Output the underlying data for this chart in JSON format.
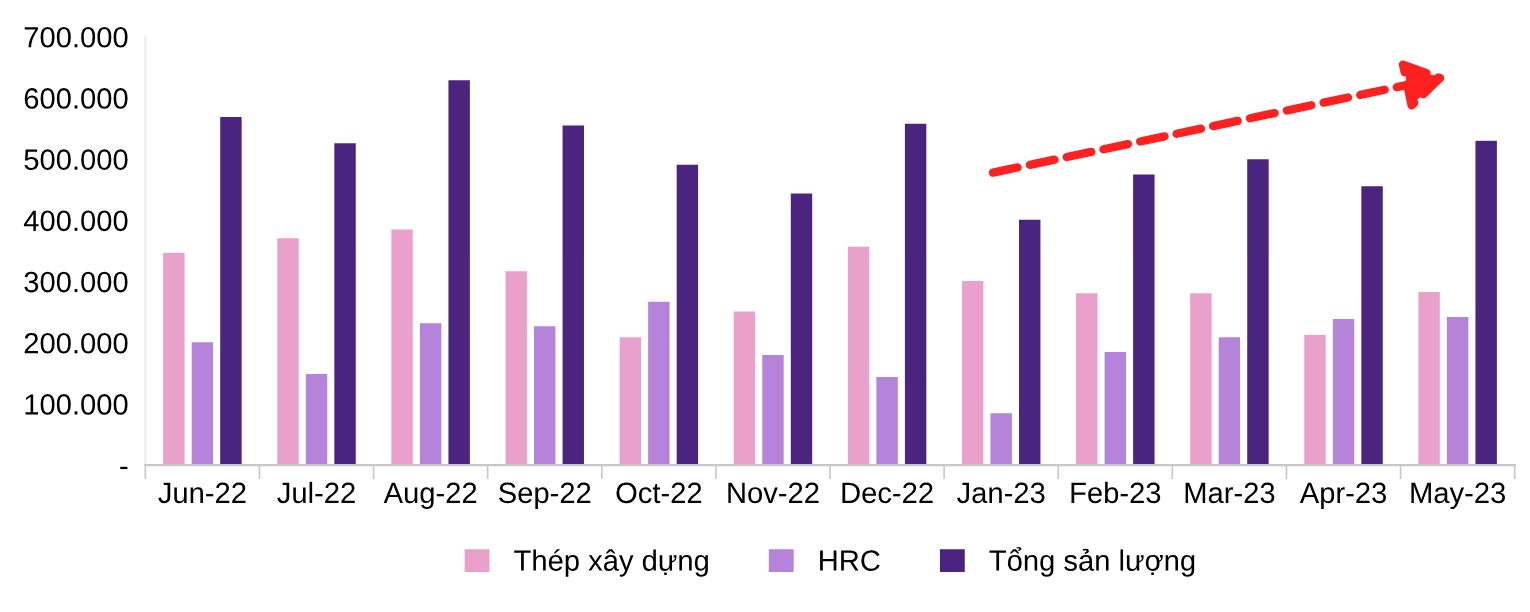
{
  "chart_data": {
    "type": "bar",
    "categories": [
      "Jun-22",
      "Jul-22",
      "Aug-22",
      "Sep-22",
      "Oct-22",
      "Nov-22",
      "Dec-22",
      "Jan-23",
      "Feb-23",
      "Mar-23",
      "Apr-23",
      "May-23"
    ],
    "series": [
      {
        "name": "Thép xây dựng",
        "color": "#e9a1cc",
        "values": [
          348000,
          372000,
          386000,
          318000,
          210000,
          252000,
          358000,
          302000,
          282000,
          282000,
          214000,
          284000
        ]
      },
      {
        "name": "HRC",
        "color": "#b583d9",
        "values": [
          202000,
          150000,
          233000,
          228000,
          268000,
          181000,
          145000,
          86000,
          186000,
          210000,
          240000,
          243000
        ]
      },
      {
        "name": "Tổng sản lượng",
        "color": "#4b2480",
        "values": [
          570000,
          527000,
          630000,
          556000,
          492000,
          445000,
          559000,
          402000,
          476000,
          501000,
          457000,
          531000
        ]
      }
    ],
    "ylim": [
      0,
      700000
    ],
    "yticks": [
      {
        "value": 0,
        "label": "-"
      },
      {
        "value": 100000,
        "label": "100.000"
      },
      {
        "value": 200000,
        "label": "200.000"
      },
      {
        "value": 300000,
        "label": "300.000"
      },
      {
        "value": 400000,
        "label": "400.000"
      },
      {
        "value": 500000,
        "label": "500.000"
      },
      {
        "value": 600000,
        "label": "600.000"
      },
      {
        "value": 700000,
        "label": "700.000"
      }
    ],
    "grid": false,
    "legend": "bottom"
  }
}
